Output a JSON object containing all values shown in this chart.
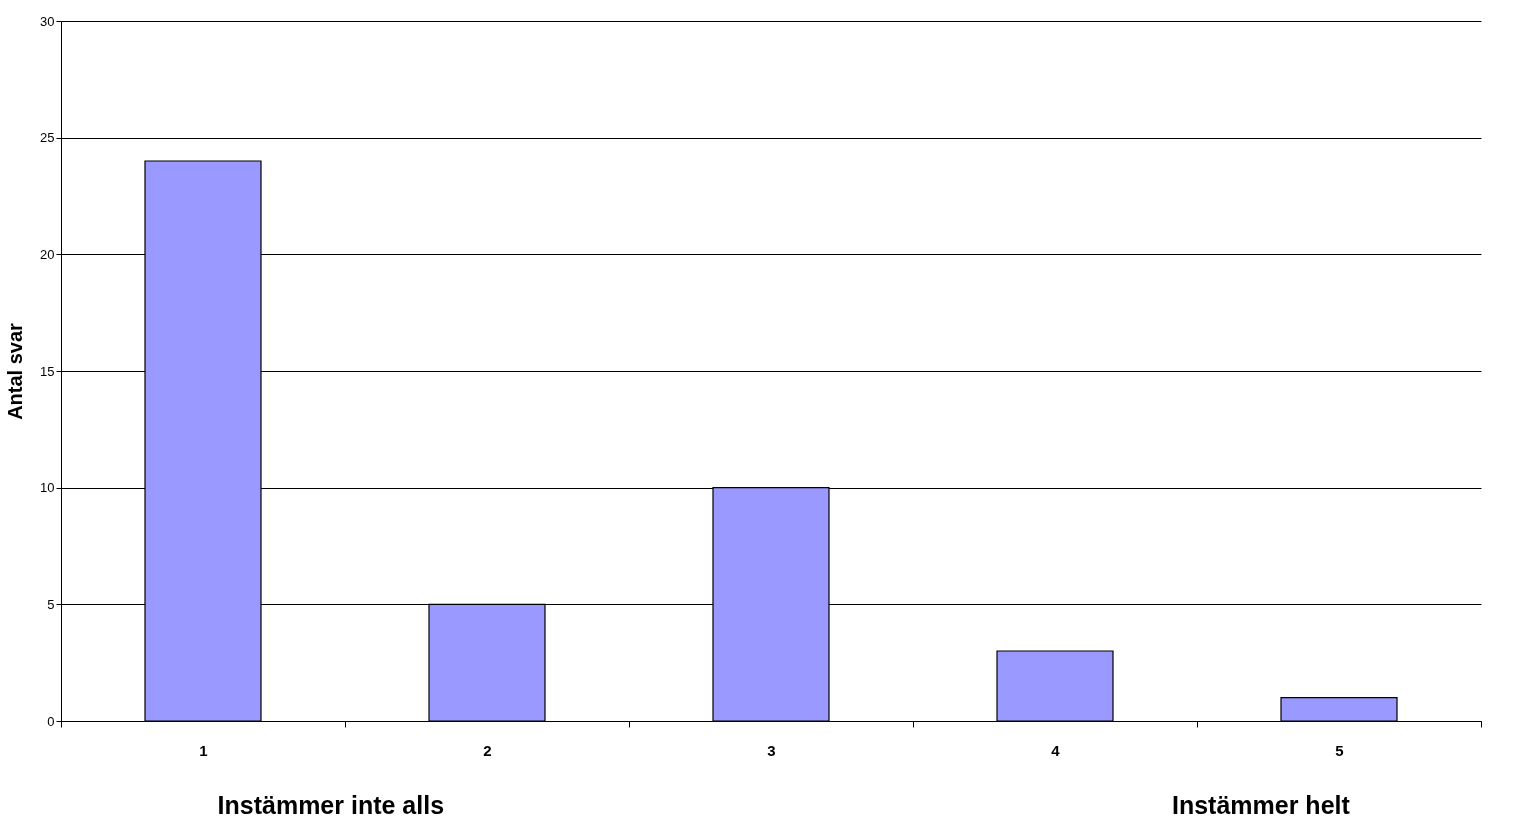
{
  "chart_data": {
    "type": "bar",
    "ylabel": "Antal svar",
    "categories": [
      "1",
      "2",
      "3",
      "4",
      "5"
    ],
    "series": [
      {
        "color": "#9999ff",
        "values": [
          24,
          5,
          10,
          3,
          1
        ]
      }
    ],
    "ylim": [
      0,
      30
    ],
    "yticks": [
      0,
      5,
      10,
      15,
      20,
      25,
      30
    ],
    "grid": "y",
    "annotations": [
      "Instämmer inte alls",
      "Instämmer helt"
    ]
  }
}
